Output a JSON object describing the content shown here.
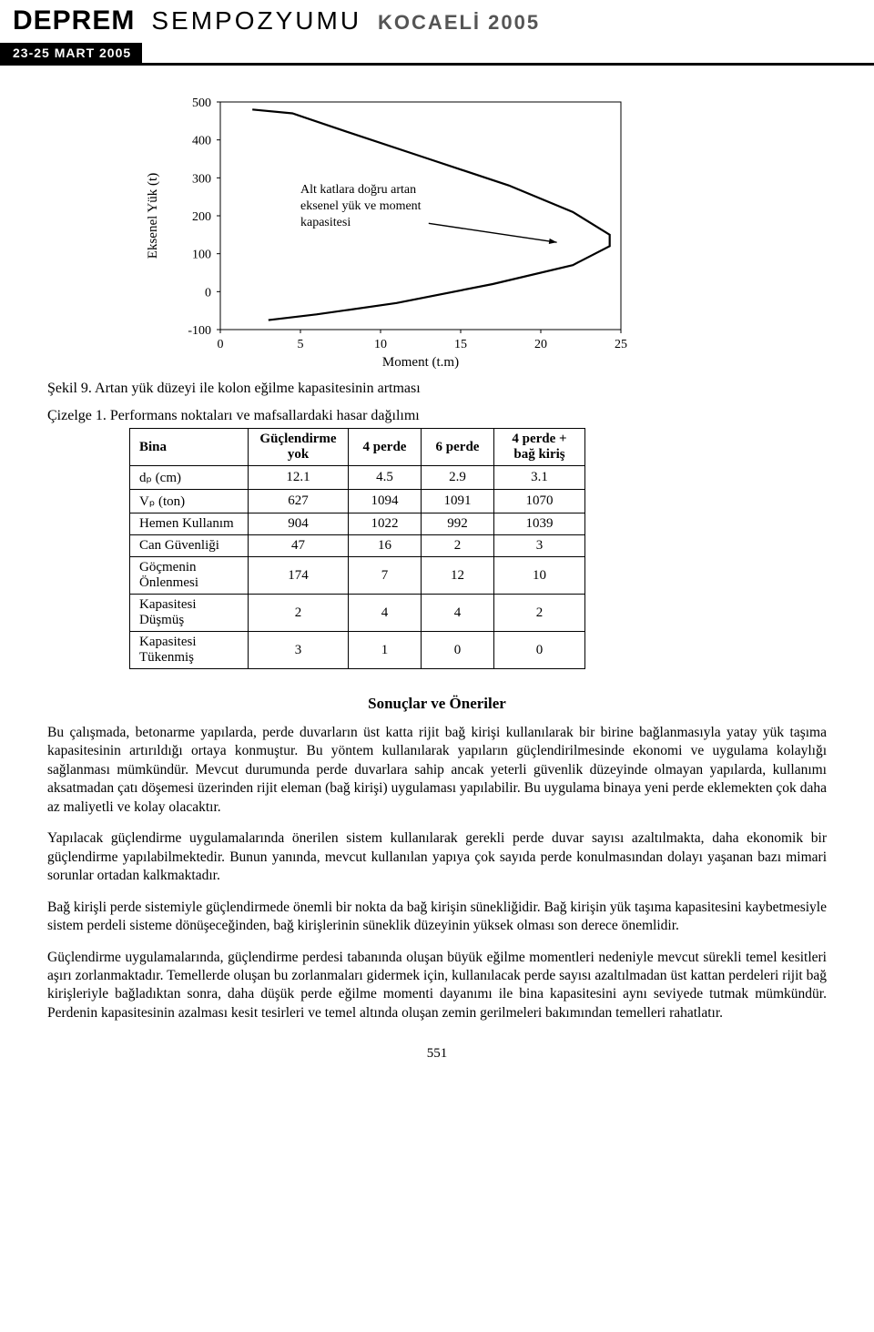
{
  "banner": {
    "deprem": "DEPREM",
    "sempozyumu": "SEMPOZYUMU",
    "kocaeli": "KOCAELİ 2005",
    "date": "23-25 MART 2005"
  },
  "chart": {
    "type": "line",
    "y_label": "Eksenel Yük (t)",
    "x_label": "Moment (t.m)",
    "annotation": "Alt katlara doğru artan\neksenel yük ve moment\nkapasitesi",
    "x_ticks": [
      0,
      5,
      10,
      15,
      20,
      25
    ],
    "y_ticks": [
      -100,
      0,
      100,
      200,
      300,
      400,
      500
    ],
    "xlim": [
      0,
      25
    ],
    "ylim": [
      -100,
      500
    ],
    "curve_points": [
      [
        2,
        480
      ],
      [
        4.5,
        470
      ],
      [
        8,
        420
      ],
      [
        13,
        350
      ],
      [
        18,
        280
      ],
      [
        22,
        210
      ],
      [
        24.3,
        150
      ],
      [
        24.3,
        120
      ],
      [
        22,
        70
      ],
      [
        17,
        20
      ],
      [
        11,
        -30
      ],
      [
        6,
        -60
      ],
      [
        3,
        -75
      ]
    ],
    "arrow": {
      "from": [
        13,
        180
      ],
      "to": [
        21,
        130
      ]
    },
    "line_color": "#000000",
    "line_width": 2.2,
    "background_color": "#ffffff",
    "border_color": "#000000",
    "tick_fontsize": 14,
    "label_fontsize": 15
  },
  "fig_caption": "Şekil 9. Artan yük düzeyi ile kolon eğilme kapasitesinin artması",
  "table_caption": "Çizelge 1. Performans noktaları ve mafsallardaki hasar dağılımı",
  "table": {
    "columns": [
      "Bina",
      "Güçlendirme yok",
      "4 perde",
      "6 perde",
      "4 perde + bağ kiriş"
    ],
    "rows": [
      [
        "dₚ (cm)",
        "12.1",
        "4.5",
        "2.9",
        "3.1"
      ],
      [
        "Vₚ (ton)",
        "627",
        "1094",
        "1091",
        "1070"
      ],
      [
        "Hemen Kullanım",
        "904",
        "1022",
        "992",
        "1039"
      ],
      [
        "Can Güvenliği",
        "47",
        "16",
        "2",
        "3"
      ],
      [
        "Göçmenin Önlenmesi",
        "174",
        "7",
        "12",
        "10"
      ],
      [
        "Kapasitesi Düşmüş",
        "2",
        "4",
        "4",
        "2"
      ],
      [
        "Kapasitesi Tükenmiş",
        "3",
        "1",
        "0",
        "0"
      ]
    ],
    "col_widths": [
      "130px",
      "110px",
      "80px",
      "80px",
      "100px"
    ]
  },
  "section_heading": "Sonuçlar ve Öneriler",
  "paragraphs": [
    "Bu çalışmada, betonarme yapılarda, perde duvarların üst katta rijit bağ kirişi kullanılarak bir birine bağlanmasıyla yatay yük taşıma kapasitesinin artırıldığı ortaya konmuştur. Bu yöntem kullanılarak yapıların güçlendirilmesinde ekonomi ve uygulama kolaylığı sağlanması mümkündür. Mevcut durumunda perde duvarlara sahip ancak yeterli güvenlik düzeyinde olmayan yapılarda, kullanımı aksatmadan çatı döşemesi üzerinden rijit eleman (bağ kirişi) uygulaması yapılabilir. Bu uygulama binaya yeni perde eklemekten çok daha az maliyetli ve kolay olacaktır.",
    "Yapılacak güçlendirme uygulamalarında önerilen sistem kullanılarak gerekli perde duvar sayısı azaltılmakta, daha ekonomik bir güçlendirme yapılabilmektedir. Bunun yanında, mevcut kullanılan yapıya çok sayıda perde konulmasından dolayı yaşanan bazı mimari sorunlar ortadan kalkmaktadır.",
    "Bağ kirişli perde sistemiyle güçlendirmede önemli bir nokta da bağ kirişin sünekliğidir. Bağ kirişin yük taşıma kapasitesini kaybetmesiyle sistem perdeli sisteme dönüşeceğinden, bağ kirişlerinin süneklik düzeyinin yüksek olması son derece önemlidir.",
    "Güçlendirme uygulamalarında, güçlendirme perdesi tabanında oluşan büyük eğilme momentleri nedeniyle mevcut sürekli temel kesitleri aşırı zorlanmaktadır. Temellerde oluşan bu zorlanmaları gidermek için, kullanılacak perde sayısı azaltılmadan üst kattan perdeleri rijit bağ kirişleriyle bağladıktan sonra, daha düşük perde eğilme momenti dayanımı ile bina kapasitesini aynı seviyede tutmak mümkündür. Perdenin kapasitesinin azalması kesit tesirleri ve temel altında oluşan zemin gerilmeleri bakımından temelleri rahatlatır."
  ],
  "page_number": "551"
}
